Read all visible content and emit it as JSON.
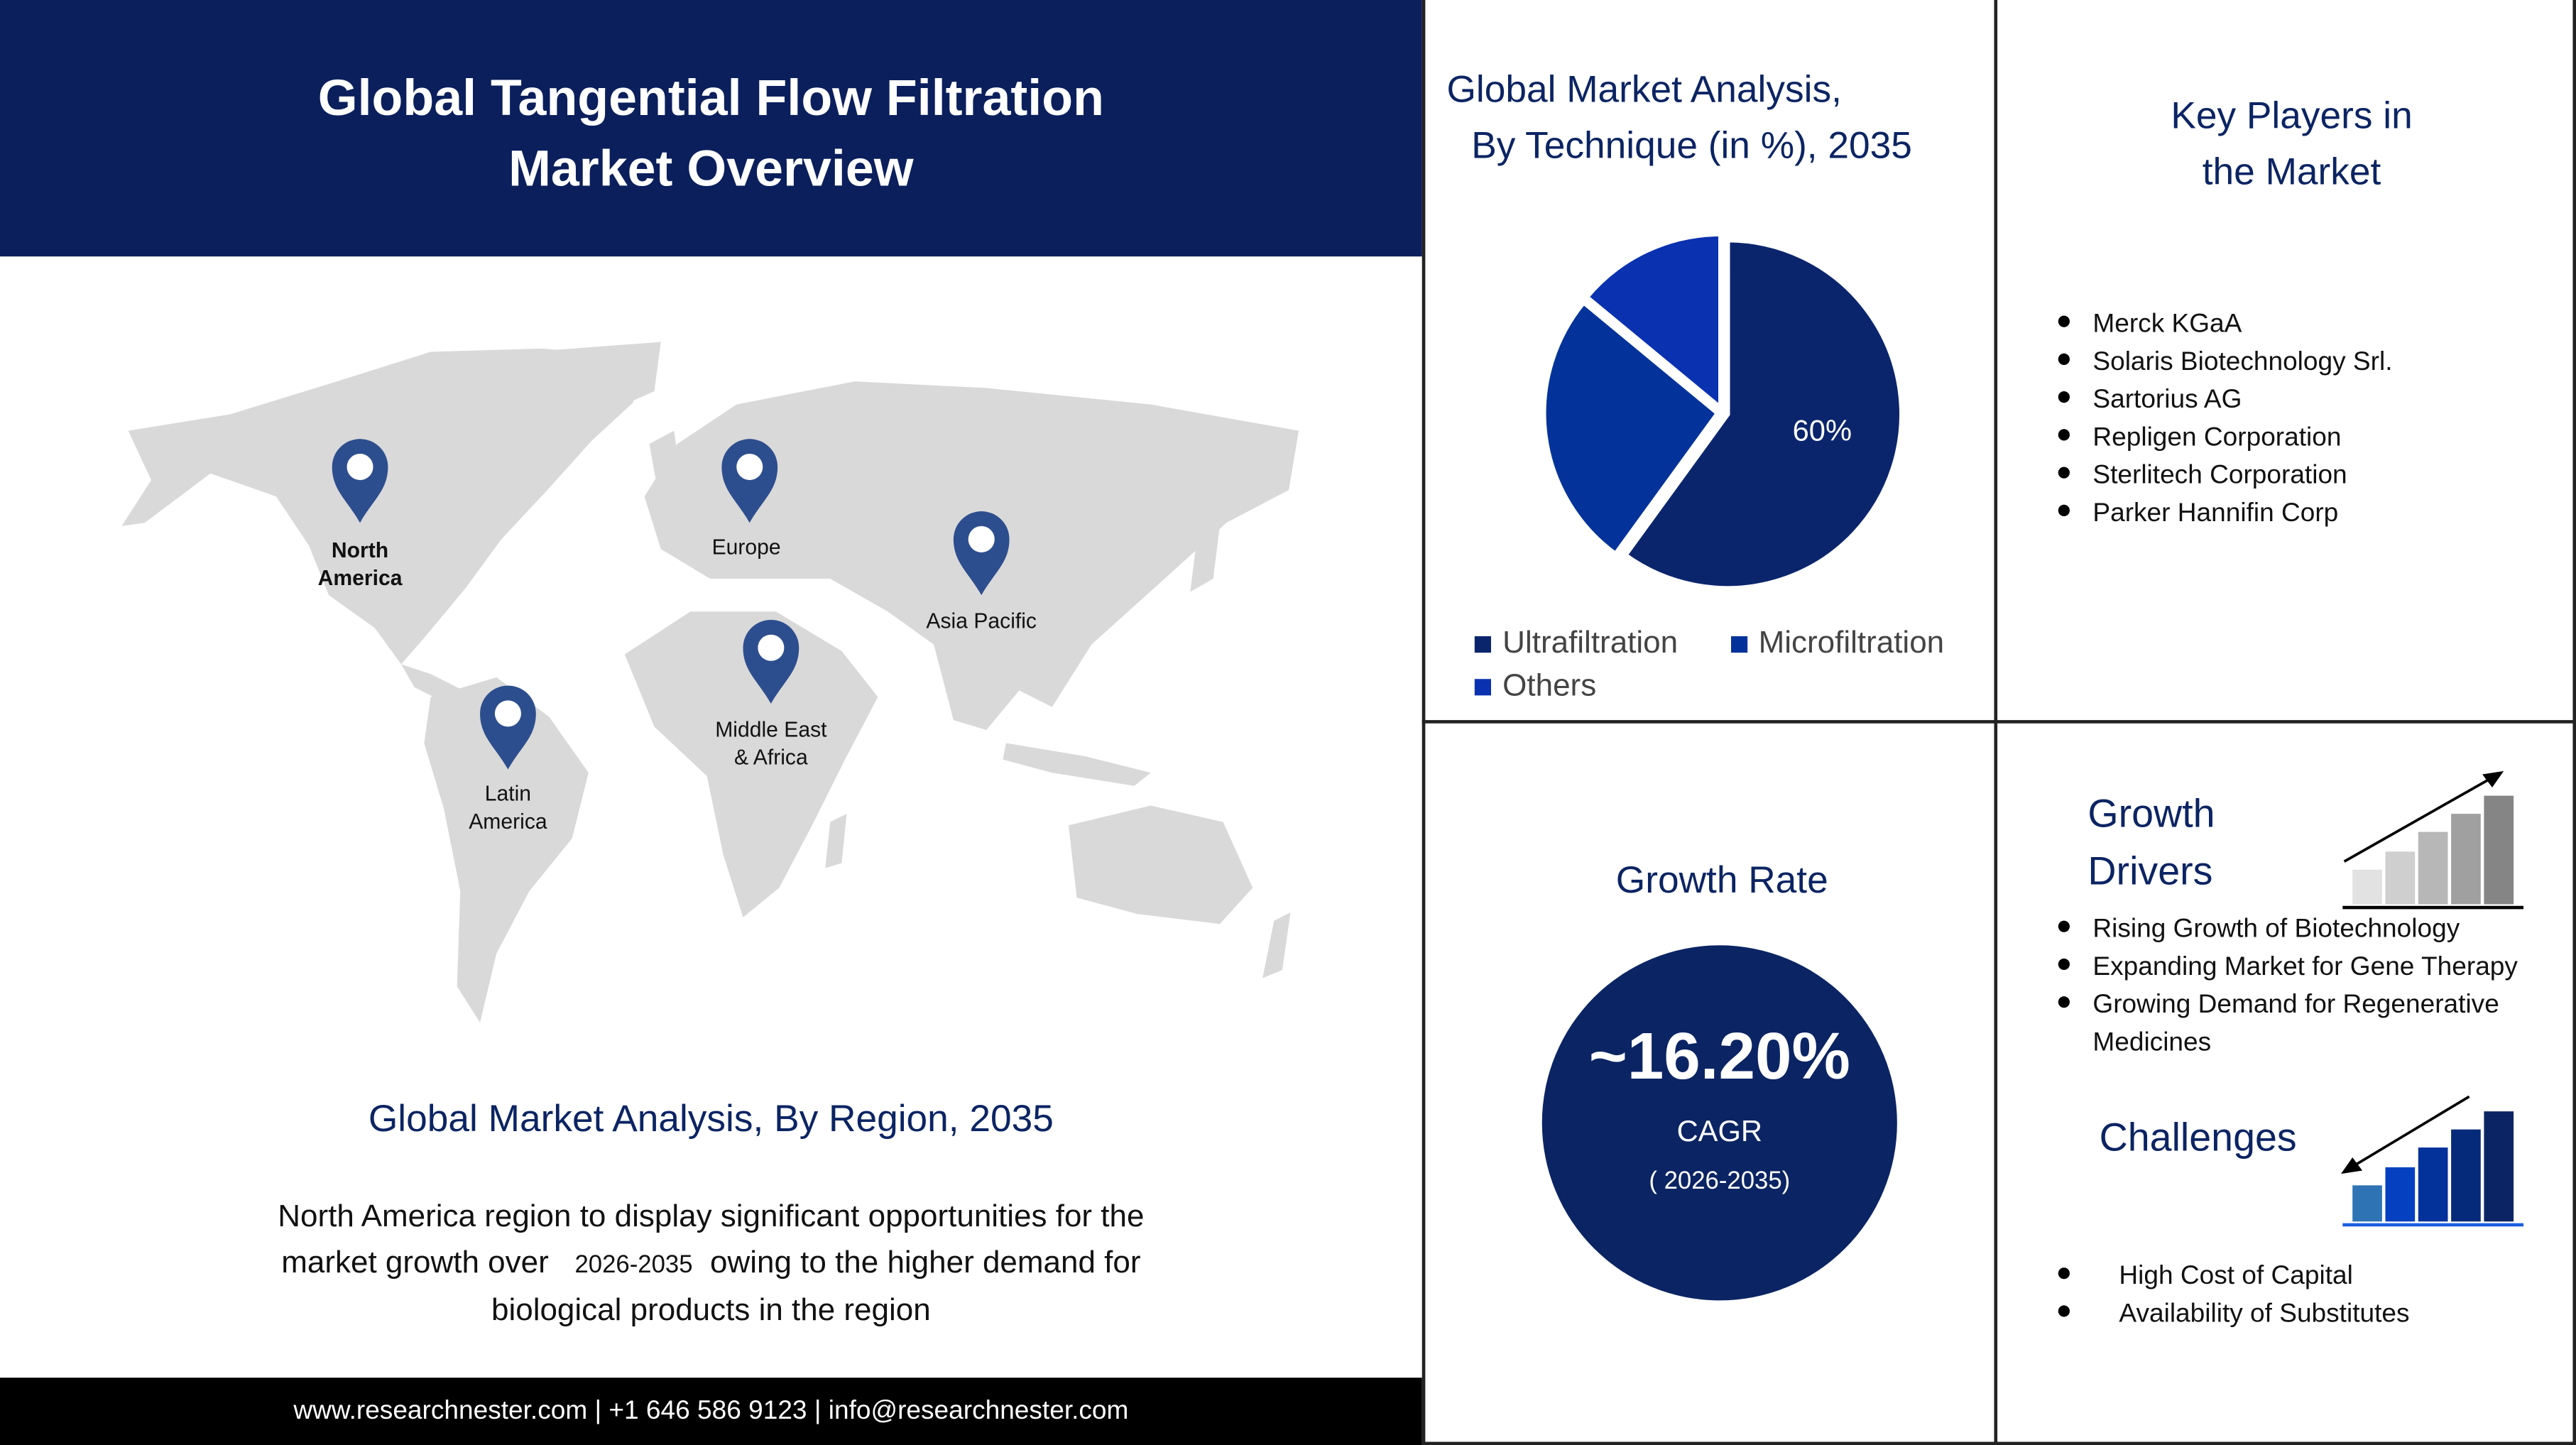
{
  "header": {
    "title_line1": "Global Tangential Flow Filtration",
    "title_line2": "Market Overview"
  },
  "map": {
    "regions": [
      {
        "line1": "North",
        "line2": "America",
        "bold": true
      },
      {
        "line1": "Europe",
        "line2": ""
      },
      {
        "line1": "Asia Pacific",
        "line2": ""
      },
      {
        "line1": "Middle East",
        "line2": "& Africa"
      },
      {
        "line1": "Latin",
        "line2": "America"
      }
    ],
    "pin_color": "#2d4e8e"
  },
  "region_section": {
    "title": "Global Market Analysis, By Region, 2035",
    "text_line1": "North America region to display significant opportunities for the",
    "text_line2a": "market growth over",
    "text_period": "2026-2035",
    "text_line2b": "owing to the higher demand for",
    "text_line3": "biological products in the region"
  },
  "footer": {
    "text": "www.researchnester.com | +1 646 586 9123 | info@researchnester.com"
  },
  "technique": {
    "title_line1": "Global Market Analysis,",
    "title_line2": "By Technique (in %), 2035"
  },
  "chart_data": {
    "type": "pie",
    "title": "Global Market Analysis, By Technique (in %), 2035",
    "categories": [
      "Ultrafiltration",
      "Microfiltration",
      "Others"
    ],
    "values": [
      60,
      26,
      14
    ],
    "colors": [
      "#0b256d",
      "#03339a",
      "#0a31b0"
    ],
    "data_labels": [
      "60%",
      "",
      ""
    ],
    "legend": "bottom"
  },
  "key_players": {
    "title_line1": "Key Players in",
    "title_line2": "the Market",
    "items": [
      "Merck KGaA",
      "Solaris Biotechnology Srl.",
      "Sartorius AG",
      "Repligen Corporation",
      "Sterlitech Corporation",
      "Parker Hannifin Corp"
    ]
  },
  "growth_rate": {
    "title": "Growth Rate",
    "value": "~16.20%",
    "label": "CAGR",
    "period": "( 2026-2035)",
    "circle_color": "#0b2463"
  },
  "growth_drivers": {
    "title_line1": "Growth",
    "title_line2": "Drivers",
    "items": [
      "Rising Growth of Biotechnology",
      "Expanding Market for Gene Therapy",
      "Growing Demand for Regenerative Medicines"
    ]
  },
  "challenges": {
    "title": "Challenges",
    "items": [
      "High Cost of Capital",
      "Availability of Substitutes"
    ]
  }
}
